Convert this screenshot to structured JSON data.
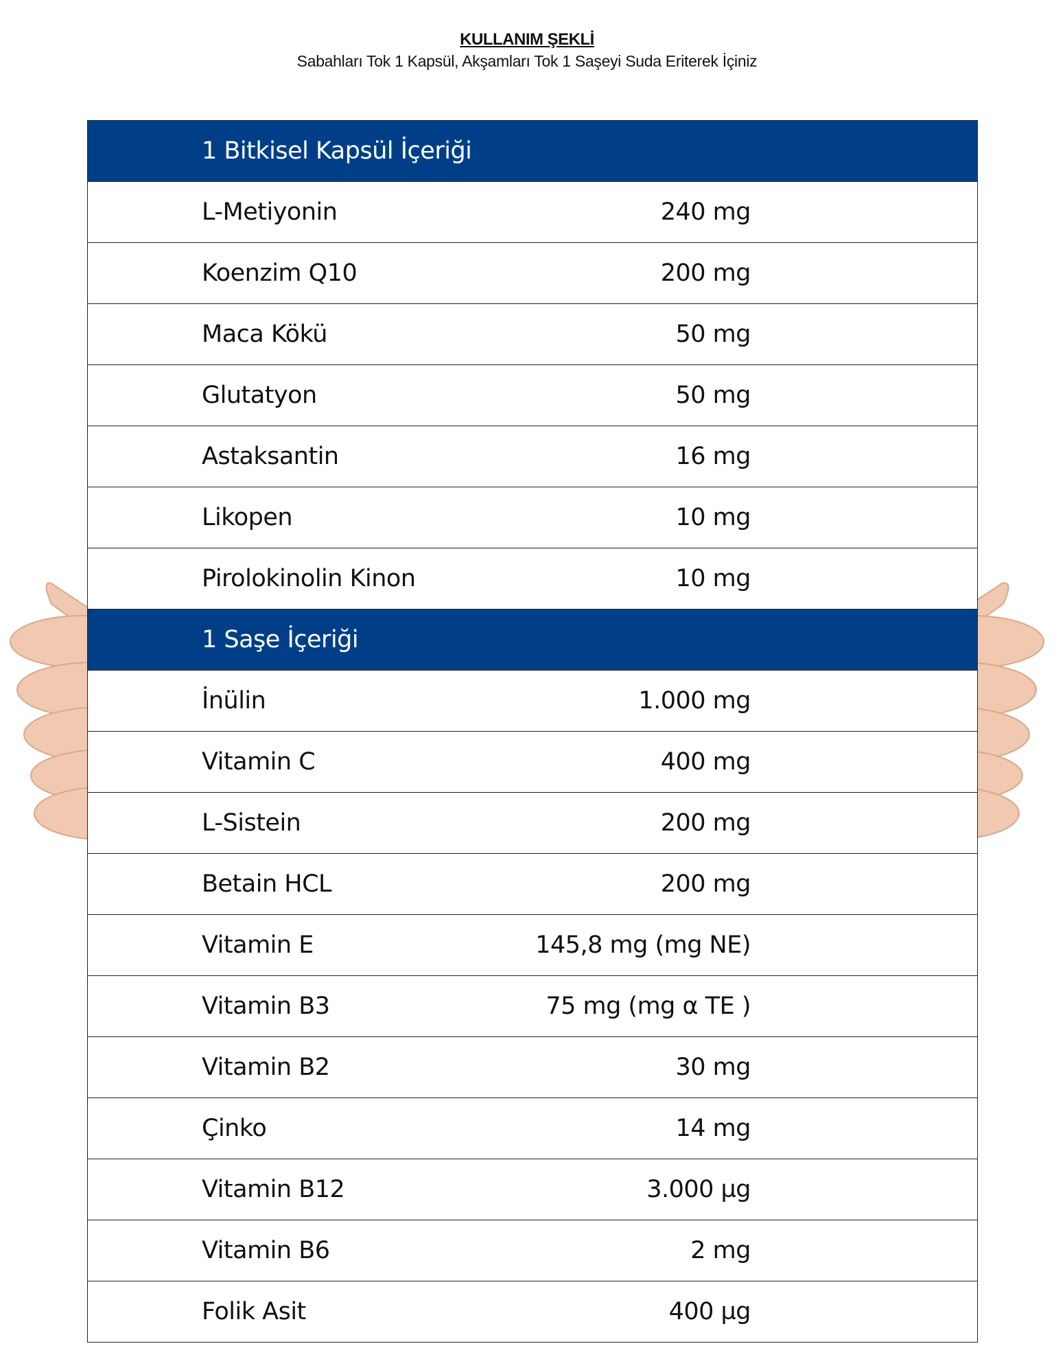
{
  "usage": {
    "title": "KULLANIM ŞEKLİ",
    "text": "Sabahları Tok 1 Kapsül, Akşamları Tok 1 Saşeyi Suda Eriterek İçiniz"
  },
  "colors": {
    "header_bg": "#003f87",
    "header_text": "#ffffff"
  },
  "sections": [
    {
      "title": "1 Bitkisel Kapsül İçeriği",
      "rows": [
        {
          "name": "L-Metiyonin",
          "value": "240 mg"
        },
        {
          "name": "Koenzim Q10",
          "value": "200 mg"
        },
        {
          "name": "Maca Kökü",
          "value": "50 mg"
        },
        {
          "name": "Glutatyon",
          "value": "50 mg"
        },
        {
          "name": "Astaksantin",
          "value": "16 mg"
        },
        {
          "name": "Likopen",
          "value": "10 mg"
        },
        {
          "name": "Pirolokinolin Kinon",
          "value": "10 mg"
        }
      ]
    },
    {
      "title": "1 Saşe İçeriği",
      "rows": [
        {
          "name": "İnülin",
          "value": "1.000 mg"
        },
        {
          "name": "Vitamin C",
          "value": "400 mg"
        },
        {
          "name": "L-Sistein",
          "value": "200 mg"
        },
        {
          "name": "Betain HCL",
          "value": "200 mg"
        },
        {
          "name": "Vitamin E",
          "value": "145,8 mg (mg NE)"
        },
        {
          "name": "Vitamin B3",
          "value": "75 mg (mg α TE )"
        },
        {
          "name": "Vitamin  B2",
          "value": "30 mg"
        },
        {
          "name": "Çinko",
          "value": "14 mg"
        },
        {
          "name": "Vitamin B12",
          "value": "3.000 µg"
        },
        {
          "name": "Vitamin B6",
          "value": "2 mg"
        },
        {
          "name": "Folik Asit",
          "value": "400 µg"
        }
      ]
    }
  ]
}
